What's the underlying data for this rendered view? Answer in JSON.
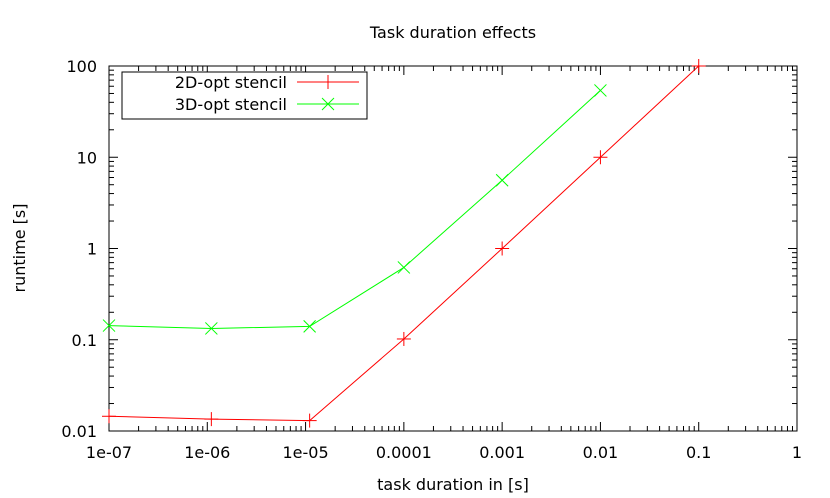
{
  "chart_data": {
    "type": "line",
    "title": "Task duration effects",
    "xlabel": "task duration in [s]",
    "ylabel": "runtime [s]",
    "xscale": "log",
    "yscale": "log",
    "xlim": [
      1e-07,
      1
    ],
    "ylim": [
      0.01,
      100
    ],
    "xticks": [
      {
        "value": 1e-07,
        "label": "1e-07"
      },
      {
        "value": 1e-06,
        "label": "1e-06"
      },
      {
        "value": 1e-05,
        "label": "1e-05"
      },
      {
        "value": 0.0001,
        "label": "0.0001"
      },
      {
        "value": 0.001,
        "label": "0.001"
      },
      {
        "value": 0.01,
        "label": "0.01"
      },
      {
        "value": 0.1,
        "label": "0.1"
      },
      {
        "value": 1,
        "label": "1"
      }
    ],
    "yticks": [
      {
        "value": 0.01,
        "label": "0.01"
      },
      {
        "value": 0.1,
        "label": "0.1"
      },
      {
        "value": 1,
        "label": "1"
      },
      {
        "value": 10,
        "label": "10"
      },
      {
        "value": 100,
        "label": "100"
      }
    ],
    "grid": false,
    "legend_position": "top-left",
    "series": [
      {
        "name": "2D-opt stencil",
        "color": "#ff0000",
        "marker": "plus",
        "x": [
          1e-07,
          1.1e-06,
          1.1e-05,
          0.0001,
          0.001,
          0.01,
          0.1
        ],
        "y": [
          0.0145,
          0.0135,
          0.013,
          0.102,
          1.0,
          10.0,
          100.0
        ]
      },
      {
        "name": "3D-opt stencil",
        "color": "#00ff00",
        "marker": "cross",
        "x": [
          1e-07,
          1.1e-06,
          1.1e-05,
          0.0001,
          0.001,
          0.01
        ],
        "y": [
          0.143,
          0.133,
          0.14,
          0.62,
          5.6,
          54
        ]
      }
    ]
  }
}
